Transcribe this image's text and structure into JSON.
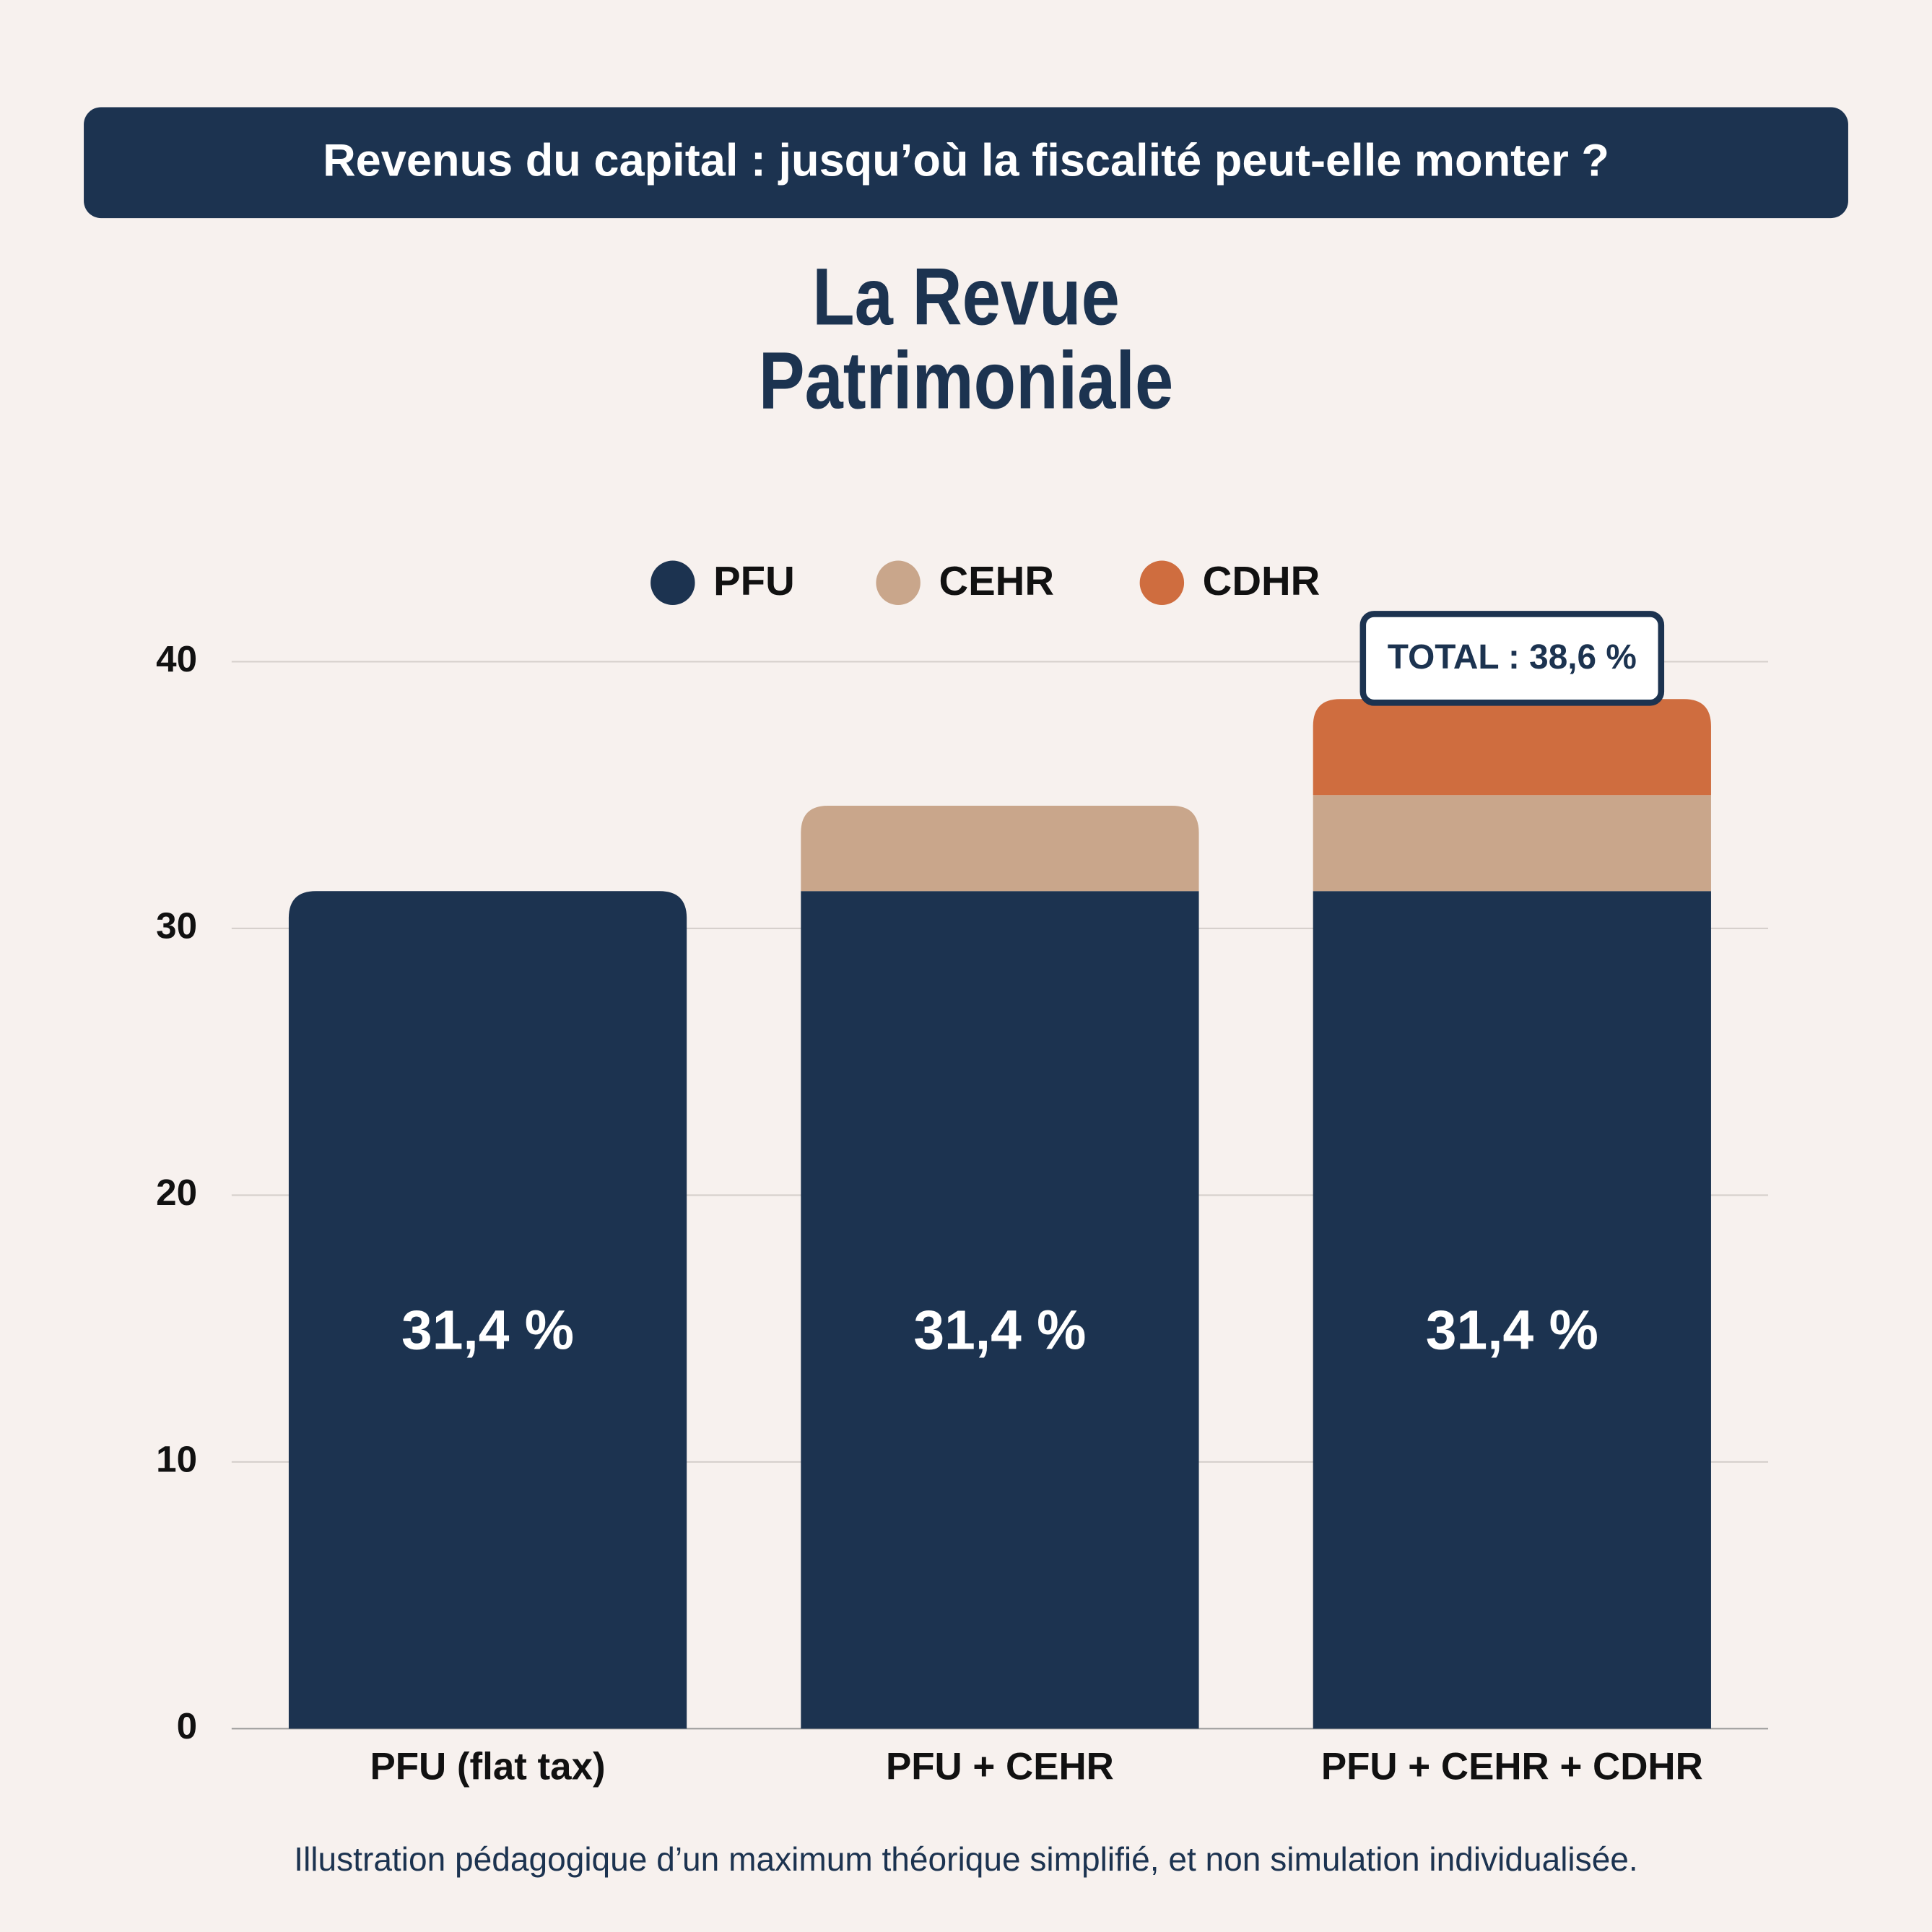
{
  "header": "Revenus du capital : jusqu’où la fiscalité peut-elle monter ?",
  "chart_data": {
    "type": "stacked_bar",
    "title_lines": [
      "La Revue",
      "Patrimoniale"
    ],
    "categories": [
      "PFU (flat tax)",
      "PFU + CEHR",
      "PFU + CEHR + CDHR"
    ],
    "series": [
      {
        "name": "PFU",
        "color": "#1c3350",
        "values": [
          31.4,
          31.4,
          31.4
        ],
        "value_labels": [
          "31,4 %",
          "31,4 %",
          "31,4 %"
        ]
      },
      {
        "name": "CEHR",
        "color": "#c9a68b",
        "values": [
          null,
          3.2,
          3.6
        ]
      },
      {
        "name": "CDHR",
        "color": "#cf6d3f",
        "values": [
          null,
          null,
          3.6
        ]
      }
    ],
    "ylim": [
      0,
      40
    ],
    "yticks": [
      0,
      10,
      20,
      30,
      40
    ],
    "grid": true,
    "legend": "top",
    "annotation": "TOTAL : 38,6 %",
    "footnote": "Illustration pédagogique d’un maximum théorique simplifié, et non simulation individualisée."
  }
}
